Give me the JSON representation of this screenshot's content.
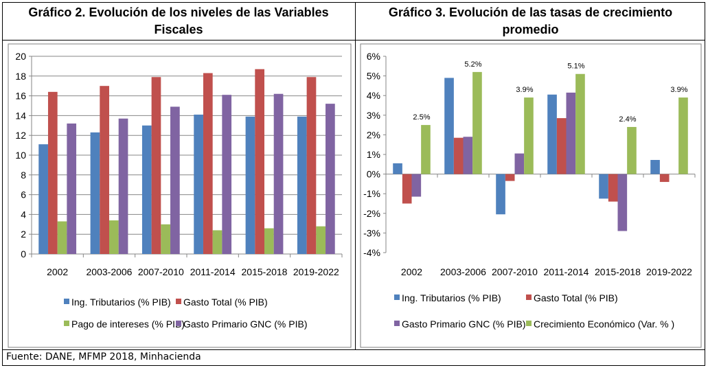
{
  "titles": {
    "left_line1": "Gráfico 2. Evolución de los niveles de las Variables",
    "left_line2": "Fiscales",
    "right_line1": "Gráfico 3. Evolución de las tasas de crecimiento",
    "right_line2": "promedio"
  },
  "source": "Fuente: DANE, MFMP 2018, Minhacienda",
  "chart_data": [
    {
      "type": "bar",
      "title": "Gráfico 2. Evolución de los niveles de las Variables Fiscales",
      "categories": [
        "2002",
        "2003-2006",
        "2007-2010",
        "2011-2014",
        "2015-2018",
        "2019-2022"
      ],
      "ylim": [
        0,
        20
      ],
      "yticks": [
        "0",
        "2",
        "4",
        "6",
        "8",
        "10",
        "12",
        "14",
        "16",
        "18",
        "20"
      ],
      "grid": true,
      "legend": "bottom",
      "series": [
        {
          "name": "Ing. Tributarios (% PIB)",
          "color": "#4F81BD",
          "values": [
            11.1,
            12.3,
            13.0,
            14.1,
            13.9,
            13.9
          ]
        },
        {
          "name": "Gasto Total (% PIB)",
          "color": "#C0504D",
          "values": [
            16.4,
            17.0,
            17.9,
            18.3,
            18.7,
            17.9
          ]
        },
        {
          "name": "Pago de intereses  (% PIB)",
          "color": "#9BBB59",
          "values": [
            3.3,
            3.4,
            3.0,
            2.4,
            2.6,
            2.8
          ]
        },
        {
          "name": "Gasto Primario GNC (% PIB)",
          "color": "#8064A2",
          "values": [
            13.2,
            13.7,
            14.9,
            16.1,
            16.2,
            15.2
          ]
        }
      ]
    },
    {
      "type": "bar",
      "title": "Gráfico 3. Evolución de las tasas de crecimiento promedio",
      "categories": [
        "2002",
        "2003-2006",
        "2007-2010",
        "2011-2014",
        "2015-2018",
        "2019-2022"
      ],
      "ylim": [
        -4,
        6
      ],
      "yticks": [
        "-4%",
        "-3%",
        "-2%",
        "-1%",
        "0%",
        "1%",
        "2%",
        "3%",
        "4%",
        "5%",
        "6%"
      ],
      "grid": false,
      "legend": "bottom",
      "series": [
        {
          "name": "Ing. Tributarios (% PIB)",
          "color": "#4F81BD",
          "values": [
            0.55,
            4.9,
            -2.05,
            4.05,
            -1.25,
            0.72
          ]
        },
        {
          "name": "Gasto Total (% PIB)",
          "color": "#C0504D",
          "values": [
            -1.5,
            1.85,
            -0.35,
            2.85,
            -1.4,
            -0.4
          ]
        },
        {
          "name": "Gasto Primario GNC (% PIB)",
          "color": "#8064A2",
          "values": [
            -1.15,
            1.9,
            1.05,
            4.15,
            -2.9,
            null
          ]
        },
        {
          "name": "Crecimiento Económico (Var. % )",
          "color": "#9BBB59",
          "values": [
            2.5,
            5.2,
            3.9,
            5.1,
            2.4,
            3.9
          ]
        }
      ],
      "data_labels": {
        "series": "Crecimiento Económico (Var. % )",
        "labels": [
          "2.5%",
          "5.2%",
          "3.9%",
          "5.1%",
          "2.4%",
          "3.9%"
        ]
      }
    }
  ]
}
